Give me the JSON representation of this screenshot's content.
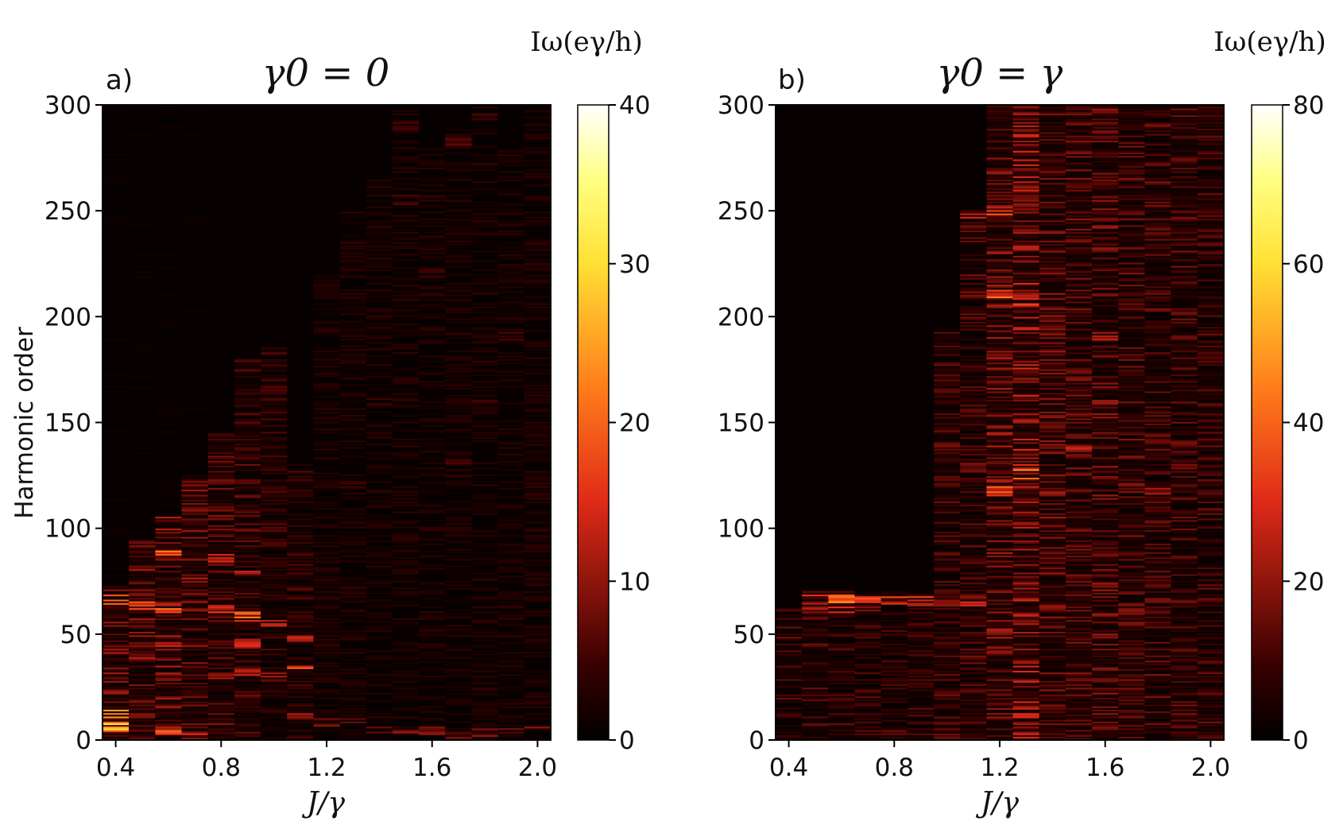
{
  "chart_data": [
    {
      "type": "heatmap",
      "panel_label": "a)",
      "title": "γ0 = 0",
      "xlabel": "J/γ",
      "ylabel": "Harmonic order",
      "x_range": [
        0.35,
        2.05
      ],
      "ylim": [
        0,
        300
      ],
      "x_ticks": [
        "0.4",
        "0.8",
        "1.2",
        "1.6",
        "2.0"
      ],
      "x_tick_values": [
        0.4,
        0.8,
        1.2,
        1.6,
        2.0
      ],
      "y_ticks": [
        "0",
        "50",
        "100",
        "150",
        "200",
        "250",
        "300"
      ],
      "y_tick_values": [
        0,
        50,
        100,
        150,
        200,
        250,
        300
      ],
      "colorbar": {
        "title": "Iω(eγ/h)",
        "min": 0,
        "max": 40,
        "ticks": [
          "0",
          "10",
          "20",
          "30",
          "40"
        ],
        "tick_values": [
          0,
          10,
          20,
          30,
          40
        ],
        "colormap": "hot"
      },
      "columns_J": [
        0.4,
        0.5,
        0.6,
        0.7,
        0.8,
        0.9,
        1.0,
        1.1,
        1.2,
        1.3,
        1.4,
        1.5,
        1.6,
        1.7,
        1.8,
        1.9,
        2.0
      ],
      "profiles": [
        {
          "cutoff": 72,
          "level": 8,
          "peaks": [
            [
              66,
              22
            ],
            [
              12,
              30
            ],
            [
              6,
              34
            ],
            [
              30,
              14
            ],
            [
              42,
              12
            ]
          ]
        },
        {
          "cutoff": 95,
          "level": 8,
          "peaks": [
            [
              63,
              20
            ],
            [
              80,
              12
            ],
            [
              40,
              12
            ],
            [
              10,
              14
            ]
          ]
        },
        {
          "cutoff": 105,
          "level": 9,
          "peaks": [
            [
              87,
              24
            ],
            [
              62,
              22
            ],
            [
              44,
              14
            ],
            [
              4,
              20
            ]
          ]
        },
        {
          "cutoff": 125,
          "level": 8,
          "peaks": [
            [
              108,
              10
            ],
            [
              76,
              12
            ],
            [
              35,
              12
            ],
            [
              2,
              16
            ]
          ]
        },
        {
          "cutoff": 145,
          "level": 7,
          "peaks": [
            [
              122,
              9
            ],
            [
              85,
              15
            ],
            [
              62,
              20
            ],
            [
              30,
              12
            ]
          ]
        },
        {
          "cutoff": 180,
          "level": 6,
          "peaks": [
            [
              58,
              24
            ],
            [
              80,
              14
            ],
            [
              45,
              16
            ],
            [
              32,
              14
            ]
          ]
        },
        {
          "cutoff": 185,
          "level": 5,
          "peaks": [
            [
              100,
              9
            ],
            [
              55,
              14
            ],
            [
              30,
              12
            ]
          ]
        },
        {
          "cutoff": 130,
          "level": 5,
          "peaks": [
            [
              48,
              16
            ],
            [
              33,
              20
            ],
            [
              10,
              12
            ]
          ]
        },
        {
          "cutoff": 220,
          "level": 3,
          "peaks": [
            [
              45,
              6
            ],
            [
              8,
              10
            ]
          ]
        },
        {
          "cutoff": 250,
          "level": 3,
          "peaks": [
            [
              120,
              6
            ],
            [
              8,
              10
            ]
          ]
        },
        {
          "cutoff": 265,
          "level": 3,
          "peaks": [
            [
              160,
              6
            ],
            [
              4,
              10
            ]
          ]
        },
        {
          "cutoff": 300,
          "level": 3,
          "peaks": [
            [
              290,
              6
            ],
            [
              255,
              6
            ],
            [
              3,
              12
            ]
          ]
        },
        {
          "cutoff": 280,
          "level": 3,
          "peaks": [
            [
              220,
              6
            ],
            [
              4,
              10
            ]
          ]
        },
        {
          "cutoff": 290,
          "level": 3,
          "peaks": [
            [
              283,
              8
            ],
            [
              130,
              6
            ],
            [
              2,
              10
            ]
          ]
        },
        {
          "cutoff": 300,
          "level": 3,
          "peaks": [
            [
              294,
              8
            ],
            [
              160,
              6
            ],
            [
              3,
              10
            ]
          ]
        },
        {
          "cutoff": 280,
          "level": 3,
          "peaks": [
            [
              190,
              6
            ],
            [
              4,
              10
            ]
          ]
        },
        {
          "cutoff": 300,
          "level": 3,
          "peaks": [
            [
              120,
              6
            ],
            [
              4,
              12
            ]
          ]
        }
      ]
    },
    {
      "type": "heatmap",
      "panel_label": "b)",
      "title": "γ0 = γ",
      "xlabel": "J/γ",
      "ylabel": "",
      "x_range": [
        0.35,
        2.05
      ],
      "ylim": [
        0,
        300
      ],
      "x_ticks": [
        "0.4",
        "0.8",
        "1.2",
        "1.6",
        "2.0"
      ],
      "x_tick_values": [
        0.4,
        0.8,
        1.2,
        1.6,
        2.0
      ],
      "y_ticks": [
        "0",
        "50",
        "100",
        "150",
        "200",
        "250",
        "300"
      ],
      "y_tick_values": [
        0,
        50,
        100,
        150,
        200,
        250,
        300
      ],
      "colorbar": {
        "title": "Iω(eγ/h)",
        "min": 0,
        "max": 80,
        "ticks": [
          "0",
          "20",
          "40",
          "60",
          "80"
        ],
        "tick_values": [
          0,
          20,
          40,
          60,
          80
        ],
        "colormap": "hot"
      },
      "columns_J": [
        0.4,
        0.5,
        0.6,
        0.7,
        0.8,
        0.9,
        1.0,
        1.1,
        1.2,
        1.3,
        1.4,
        1.5,
        1.6,
        1.7,
        1.8,
        1.9,
        2.0
      ],
      "profiles": [
        {
          "cutoff": 62,
          "level": 12,
          "peaks": [
            [
              10,
              16
            ],
            [
              50,
              12
            ]
          ]
        },
        {
          "cutoff": 70,
          "level": 12,
          "peaks": [
            [
              66,
              50
            ],
            [
              62,
              30
            ]
          ]
        },
        {
          "cutoff": 70,
          "level": 11,
          "peaks": [
            [
              66,
              52
            ],
            [
              62,
              30
            ]
          ]
        },
        {
          "cutoff": 70,
          "level": 11,
          "peaks": [
            [
              65,
              45
            ],
            [
              61,
              30
            ]
          ]
        },
        {
          "cutoff": 70,
          "level": 11,
          "peaks": [
            [
              65,
              40
            ]
          ]
        },
        {
          "cutoff": 70,
          "level": 11,
          "peaks": [
            [
              65,
              42
            ]
          ]
        },
        {
          "cutoff": 195,
          "level": 12,
          "peaks": [
            [
              140,
              20
            ],
            [
              65,
              30
            ]
          ]
        },
        {
          "cutoff": 250,
          "level": 13,
          "peaks": [
            [
              248,
              28
            ],
            [
              128,
              20
            ],
            [
              65,
              30
            ]
          ]
        },
        {
          "cutoff": 300,
          "level": 18,
          "peaks": [
            [
              250,
              40
            ],
            [
              210,
              48
            ],
            [
              117,
              40
            ],
            [
              50,
              25
            ]
          ]
        },
        {
          "cutoff": 300,
          "level": 22,
          "peaks": [
            [
              207,
              35
            ],
            [
              125,
              55
            ],
            [
              10,
              30
            ]
          ]
        },
        {
          "cutoff": 300,
          "level": 16,
          "peaks": [
            [
              180,
              22
            ],
            [
              62,
              25
            ]
          ]
        },
        {
          "cutoff": 300,
          "level": 15,
          "peaks": [
            [
              138,
              30
            ],
            [
              235,
              20
            ]
          ]
        },
        {
          "cutoff": 300,
          "level": 16,
          "peaks": [
            [
              190,
              28
            ],
            [
              115,
              30
            ],
            [
              70,
              22
            ]
          ]
        },
        {
          "cutoff": 300,
          "level": 14,
          "peaks": [
            [
              120,
              25
            ],
            [
              60,
              20
            ]
          ]
        },
        {
          "cutoff": 300,
          "level": 13,
          "peaks": [
            [
              118,
              24
            ],
            [
              210,
              18
            ]
          ]
        },
        {
          "cutoff": 300,
          "level": 13,
          "peaks": [
            [
              262,
              18
            ],
            [
              140,
              18
            ]
          ]
        },
        {
          "cutoff": 300,
          "level": 12,
          "peaks": [
            [
              180,
              14
            ],
            [
              40,
              12
            ]
          ]
        }
      ]
    }
  ]
}
